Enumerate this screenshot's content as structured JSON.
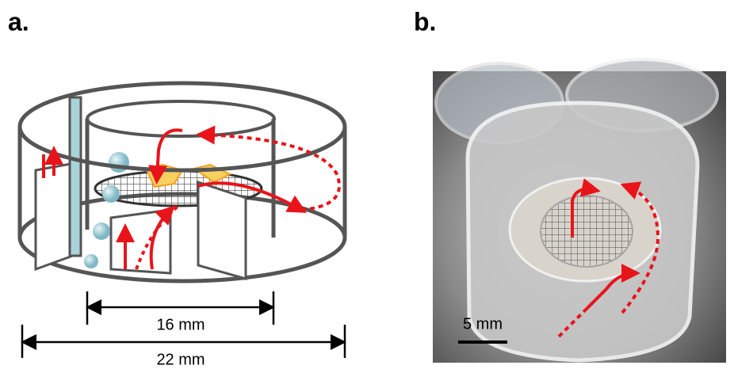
{
  "panels": [
    {
      "label": "a.",
      "dimensions": [
        "16 mm",
        "22 mm"
      ]
    },
    {
      "label": "b.",
      "scale_bar": "5 mm"
    }
  ]
}
